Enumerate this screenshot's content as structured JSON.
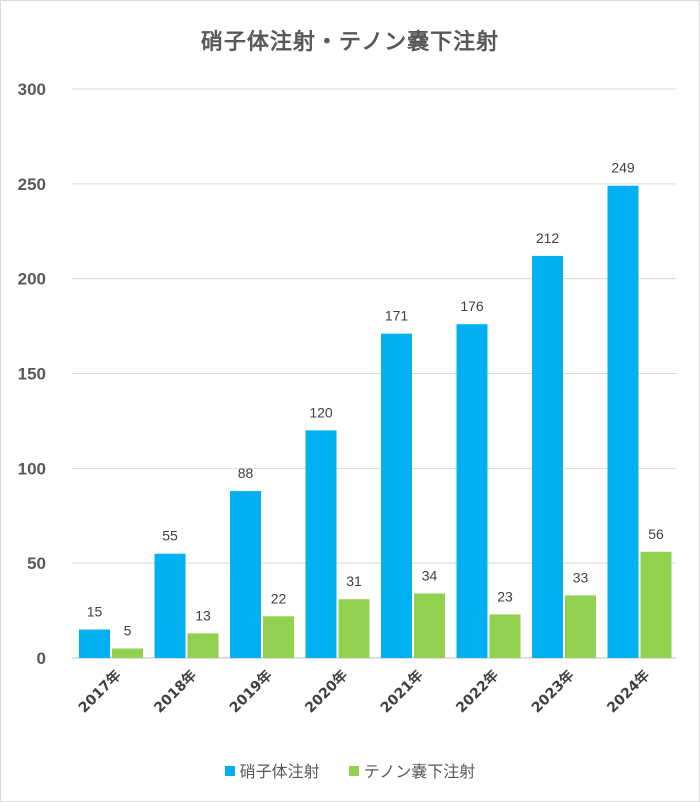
{
  "chart_data": {
    "type": "bar",
    "title": "硝子体注射・テノン嚢下注射",
    "categories": [
      "2017年",
      "2018年",
      "2019年",
      "2020年",
      "2021年",
      "2022年",
      "2023年",
      "2024年"
    ],
    "series": [
      {
        "name": "硝子体注射",
        "color": "#00b0f0",
        "values": [
          15,
          55,
          88,
          120,
          171,
          176,
          212,
          249
        ]
      },
      {
        "name": "テノン嚢下注射",
        "color": "#92d050",
        "values": [
          5,
          13,
          22,
          31,
          34,
          23,
          33,
          56
        ]
      }
    ],
    "ylim": [
      0,
      300
    ],
    "yticks": [
      0,
      50,
      100,
      150,
      200,
      250,
      300
    ],
    "grid": true,
    "legend_position": "bottom"
  }
}
